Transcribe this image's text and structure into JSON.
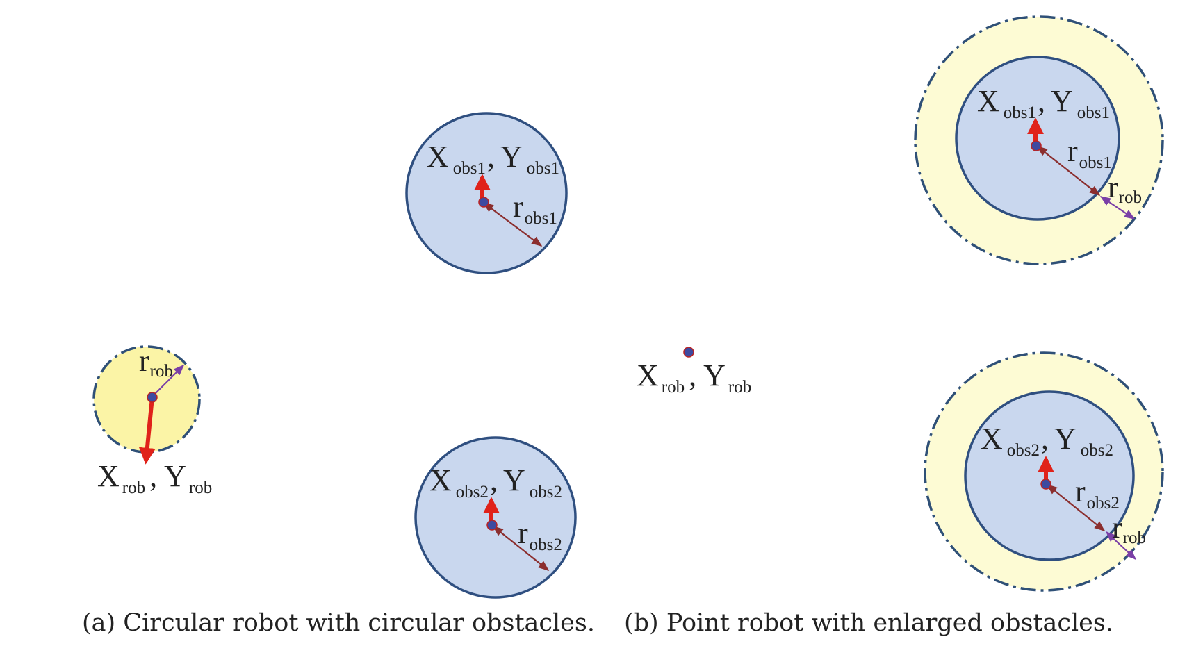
{
  "colors": {
    "obstacle_fill": "#c9d7ee",
    "obstacle_stroke": "#2f4f80",
    "margin_fill": "#fdfbd4",
    "robot_fill": "#fbf4a6",
    "dash_stroke": "#2f5077",
    "heading_arrow": "#e0221a",
    "radius_arrow_obs": "#8b2e2e",
    "radius_arrow_rob": "#7a3fa6",
    "center_dot": "#3e4aa0"
  },
  "panel_a": {
    "caption": "(a) Circular robot with circular obstacles.",
    "obs1": {
      "X": "X",
      "x_sub": "obs1",
      "sep": ",",
      "Y": "Y",
      "y_sub": "obs1",
      "r": "r",
      "r_sub": "obs1"
    },
    "obs2": {
      "X": "X",
      "x_sub": "obs2",
      "sep": ",",
      "Y": "Y",
      "y_sub": "obs2",
      "r": "r",
      "r_sub": "obs2"
    },
    "robot": {
      "X": "X",
      "x_sub": "rob",
      "sep": ",",
      "Y": "Y",
      "y_sub": "rob",
      "r": "r",
      "r_sub": "rob"
    }
  },
  "panel_b": {
    "caption": "(b) Point robot with enlarged obstacles.",
    "robot": {
      "X": "X",
      "x_sub": "rob",
      "sep": ",",
      "Y": "Y",
      "y_sub": "rob"
    },
    "obs1": {
      "X": "X",
      "x_sub": "obs1",
      "sep": ",",
      "Y": "Y",
      "y_sub": "obs1",
      "r": "r",
      "r_sub": "obs1",
      "r2": "r",
      "r2_sub": "rob"
    },
    "obs2": {
      "X": "X",
      "x_sub": "obs2",
      "sep": ",",
      "Y": "Y",
      "y_sub": "obs2",
      "r": "r",
      "r2": "r",
      "r_sub": "obs2",
      "r2_sub": "rob"
    }
  }
}
